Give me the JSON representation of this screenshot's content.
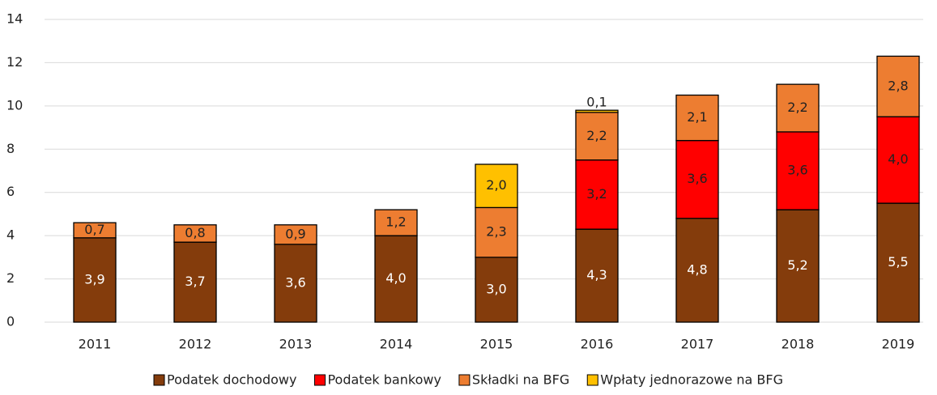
{
  "chart_data": {
    "type": "bar",
    "stacked": true,
    "categories": [
      "2011",
      "2012",
      "2013",
      "2014",
      "2015",
      "2016",
      "2017",
      "2018",
      "2019"
    ],
    "series": [
      {
        "name": "Podatek dochodowy",
        "color": "#843C0C",
        "values": [
          3.9,
          3.7,
          3.6,
          4.0,
          3.0,
          4.3,
          4.8,
          5.2,
          5.5
        ],
        "value_labels": [
          "3,9",
          "3,7",
          "3,6",
          "4,0",
          "3,0",
          "4,3",
          "4,8",
          "5,2",
          "5,5"
        ]
      },
      {
        "name": "Podatek bankowy",
        "color": "#FF0000",
        "values": [
          null,
          null,
          null,
          null,
          null,
          3.2,
          3.6,
          3.6,
          4.0
        ],
        "value_labels": [
          null,
          null,
          null,
          null,
          null,
          "3,2",
          "3,6",
          "3,6",
          "4,0"
        ]
      },
      {
        "name": "Składki na BFG",
        "color": "#ED7D31",
        "values": [
          0.7,
          0.8,
          0.9,
          1.2,
          2.3,
          2.2,
          2.1,
          2.2,
          2.8
        ],
        "value_labels": [
          "0,7",
          "0,8",
          "0,9",
          "1,2",
          "2,3",
          "2,2",
          "2,1",
          "2,2",
          "2,8"
        ]
      },
      {
        "name": "Wpłaty jednorazowe na BFG",
        "color": "#FFC000",
        "values": [
          null,
          null,
          null,
          null,
          2.0,
          0.1,
          null,
          null,
          null
        ],
        "value_labels": [
          null,
          null,
          null,
          null,
          "2,0",
          "0,1",
          null,
          null,
          null
        ]
      }
    ],
    "ylim": [
      0,
      14
    ],
    "yticks": [
      0,
      2,
      4,
      6,
      8,
      10,
      12,
      14
    ],
    "grid": true,
    "legend": "bottom"
  }
}
